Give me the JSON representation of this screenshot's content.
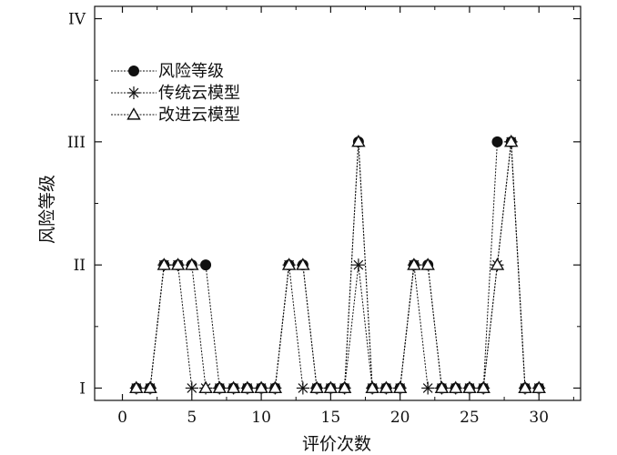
{
  "chart_data": {
    "type": "line",
    "xlabel": "评价次数",
    "ylabel": "风险等级",
    "xlim": [
      -2,
      33
    ],
    "ylim": [
      0.9,
      4.1
    ],
    "x_ticks": [
      0,
      5,
      10,
      15,
      20,
      25,
      30
    ],
    "x_tick_labels": [
      "0",
      "5",
      "10",
      "15",
      "20",
      "25",
      "30"
    ],
    "y_ticks": [
      1,
      2,
      3,
      4
    ],
    "y_tick_labels": [
      "I",
      "II",
      "III",
      "IV"
    ],
    "grid": false,
    "legend_position": "top-left",
    "series": [
      {
        "name": "风险等级",
        "marker": "filled-circle",
        "x": [
          1,
          2,
          3,
          4,
          5,
          6,
          7,
          8,
          9,
          10,
          11,
          12,
          13,
          14,
          15,
          16,
          17,
          18,
          19,
          20,
          21,
          22,
          23,
          24,
          25,
          26,
          27,
          28,
          29,
          30
        ],
        "y": [
          1,
          1,
          2,
          2,
          2,
          2,
          1,
          1,
          1,
          1,
          1,
          2,
          2,
          1,
          1,
          1,
          3,
          1,
          1,
          1,
          2,
          2,
          1,
          1,
          1,
          1,
          3,
          3,
          1,
          1
        ]
      },
      {
        "name": "传统云模型",
        "marker": "asterisk",
        "x": [
          1,
          2,
          3,
          4,
          5,
          6,
          7,
          8,
          9,
          10,
          11,
          12,
          13,
          14,
          15,
          16,
          17,
          18,
          19,
          20,
          21,
          22,
          23,
          24,
          25,
          26,
          27,
          28,
          29,
          30
        ],
        "y": [
          1,
          1,
          2,
          2,
          1,
          1,
          1,
          1,
          1,
          1,
          1,
          2,
          1,
          1,
          1,
          1,
          2,
          1,
          1,
          1,
          2,
          1,
          1,
          1,
          1,
          1,
          2,
          3,
          1,
          1
        ]
      },
      {
        "name": "改进云模型",
        "marker": "open-triangle",
        "x": [
          1,
          2,
          3,
          4,
          5,
          6,
          7,
          8,
          9,
          10,
          11,
          12,
          13,
          14,
          15,
          16,
          17,
          18,
          19,
          20,
          21,
          22,
          23,
          24,
          25,
          26,
          27,
          28,
          29,
          30
        ],
        "y": [
          1,
          1,
          2,
          2,
          2,
          1,
          1,
          1,
          1,
          1,
          1,
          2,
          2,
          1,
          1,
          1,
          3,
          1,
          1,
          1,
          2,
          2,
          1,
          1,
          1,
          1,
          2,
          3,
          1,
          1
        ]
      }
    ]
  }
}
